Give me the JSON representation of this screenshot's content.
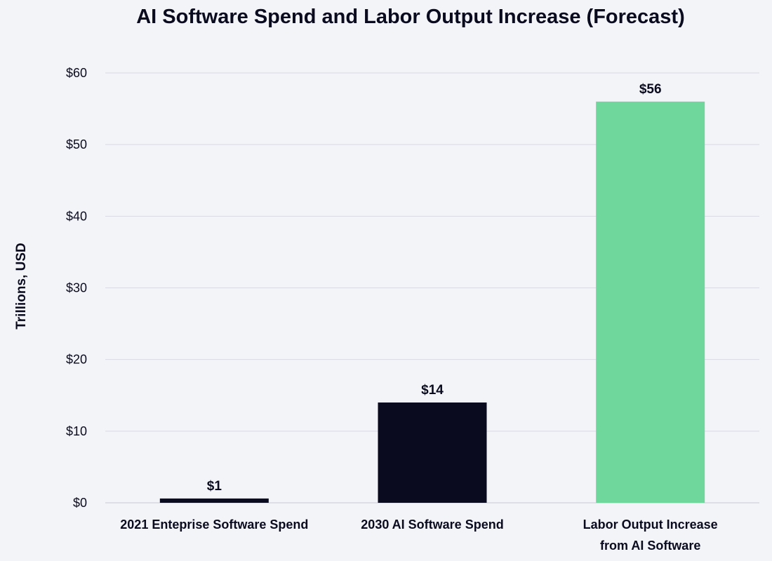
{
  "chart_data": {
    "type": "bar",
    "title": "AI Software Spend and Labor Output Increase (Forecast)",
    "xlabel": "",
    "ylabel": "Trillions, USD",
    "ylim": [
      0,
      60
    ],
    "yticks": [
      {
        "value": 0,
        "label": "$0"
      },
      {
        "value": 10,
        "label": "$10"
      },
      {
        "value": 20,
        "label": "$20"
      },
      {
        "value": 30,
        "label": "$30"
      },
      {
        "value": 40,
        "label": "$40"
      },
      {
        "value": 50,
        "label": "$50"
      },
      {
        "value": 60,
        "label": "$60"
      }
    ],
    "grid": true,
    "categories": [
      [
        "2021 Enteprise Software Spend"
      ],
      [
        "2030 AI Software Spend"
      ],
      [
        "Labor Output Increase",
        "from AI Software"
      ]
    ],
    "values": [
      0.6,
      14,
      56
    ],
    "value_labels": [
      "$1",
      "$14",
      "$56"
    ],
    "colors": [
      "#0b0b1f",
      "#0b0b1f",
      "#6fd69c"
    ]
  }
}
